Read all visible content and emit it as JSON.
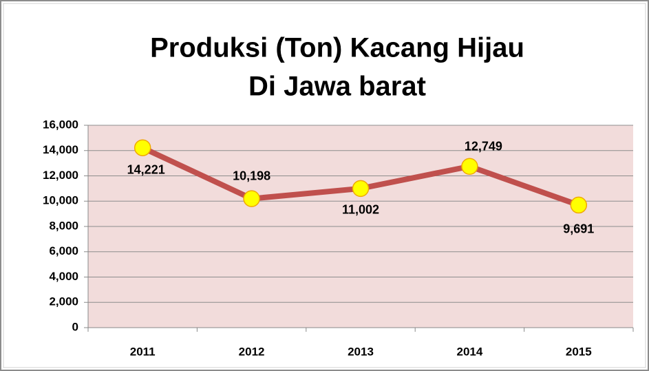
{
  "chart_data": {
    "type": "line",
    "title": [
      "Produksi (Ton) Kacang Hijau",
      "Di Jawa barat"
    ],
    "categories": [
      "2011",
      "2012",
      "2013",
      "2014",
      "2015"
    ],
    "series": [
      {
        "color": "#c0504d",
        "marker_color": "#ffff00",
        "marker_edge": "#f0a800",
        "values": [
          14221,
          10198,
          11002,
          12749,
          9691
        ],
        "value_labels": [
          "14,221",
          "10,198",
          "11,002",
          "12,749",
          "9,691"
        ]
      }
    ],
    "ylim": [
      0,
      16000
    ],
    "yticks": [
      0,
      {
        "value": 2000,
        "label": "2,000"
      },
      {
        "value": 4000,
        "label": "4,000"
      },
      {
        "value": 6000,
        "label": "6,000"
      },
      {
        "value": 8000,
        "label": "8,000"
      },
      {
        "value": 10000,
        "label": "10,000"
      },
      {
        "value": 12000,
        "label": "12,000"
      },
      {
        "value": 14000,
        "label": "14,000"
      },
      {
        "value": 16000,
        "label": "16,000"
      }
    ],
    "grid": true,
    "plot_background": "#f2dcdb"
  }
}
